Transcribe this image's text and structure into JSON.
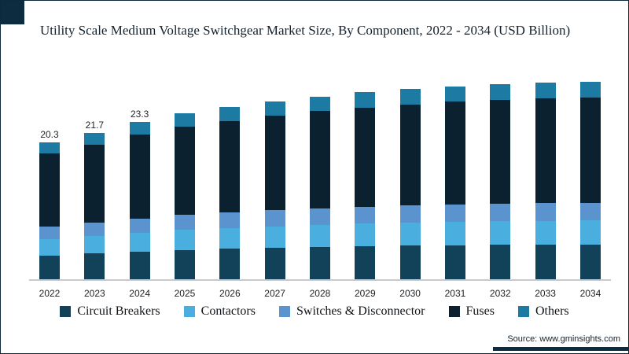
{
  "title": "Utility Scale Medium Voltage Switchgear Market Size, By Component, 2022 - 2034 (USD Billion)",
  "source": "Source: www.gminsights.com",
  "chart_data": {
    "type": "bar",
    "stacked": true,
    "grid": false,
    "legend_position": "bottom",
    "xlabel": "",
    "ylabel": "",
    "ylim": [
      0,
      31
    ],
    "categories": [
      "2022",
      "2023",
      "2024",
      "2025",
      "2026",
      "2027",
      "2028",
      "2029",
      "2030",
      "2031",
      "2032",
      "2033",
      "2034"
    ],
    "series": [
      {
        "name": "Circuit Breakers",
        "color": "#12425a",
        "values": [
          3.65,
          3.91,
          4.19,
          4.43,
          4.59,
          4.75,
          4.88,
          4.99,
          5.08,
          5.15,
          5.2,
          5.24,
          5.27
        ]
      },
      {
        "name": "Contactors",
        "color": "#4aaede",
        "values": [
          2.44,
          2.6,
          2.8,
          2.95,
          3.06,
          3.17,
          3.25,
          3.32,
          3.38,
          3.43,
          3.47,
          3.49,
          3.52
        ]
      },
      {
        "name": "Switches & Disconnector",
        "color": "#5b93ce",
        "values": [
          1.83,
          1.95,
          2.1,
          2.21,
          2.3,
          2.38,
          2.44,
          2.49,
          2.54,
          2.57,
          2.6,
          2.62,
          2.64
        ]
      },
      {
        "name": "Fuses",
        "color": "#0b2130",
        "values": [
          10.76,
          11.5,
          12.35,
          13.04,
          13.52,
          13.99,
          14.36,
          14.68,
          14.95,
          15.16,
          15.32,
          15.42,
          15.53
        ]
      },
      {
        "name": "Others",
        "color": "#1d7ba3",
        "values": [
          1.62,
          1.74,
          1.86,
          1.97,
          2.04,
          2.11,
          2.17,
          2.22,
          2.26,
          2.29,
          2.31,
          2.33,
          2.34
        ]
      }
    ],
    "value_labels": [
      "20.3",
      "21.7",
      "23.3",
      "",
      "",
      "",
      "",
      "",
      "",
      "",
      "",
      "",
      ""
    ],
    "totals": [
      20.3,
      21.7,
      23.3,
      24.6,
      25.5,
      26.4,
      27.1,
      27.7,
      28.2,
      28.6,
      28.9,
      29.1,
      29.3
    ]
  }
}
